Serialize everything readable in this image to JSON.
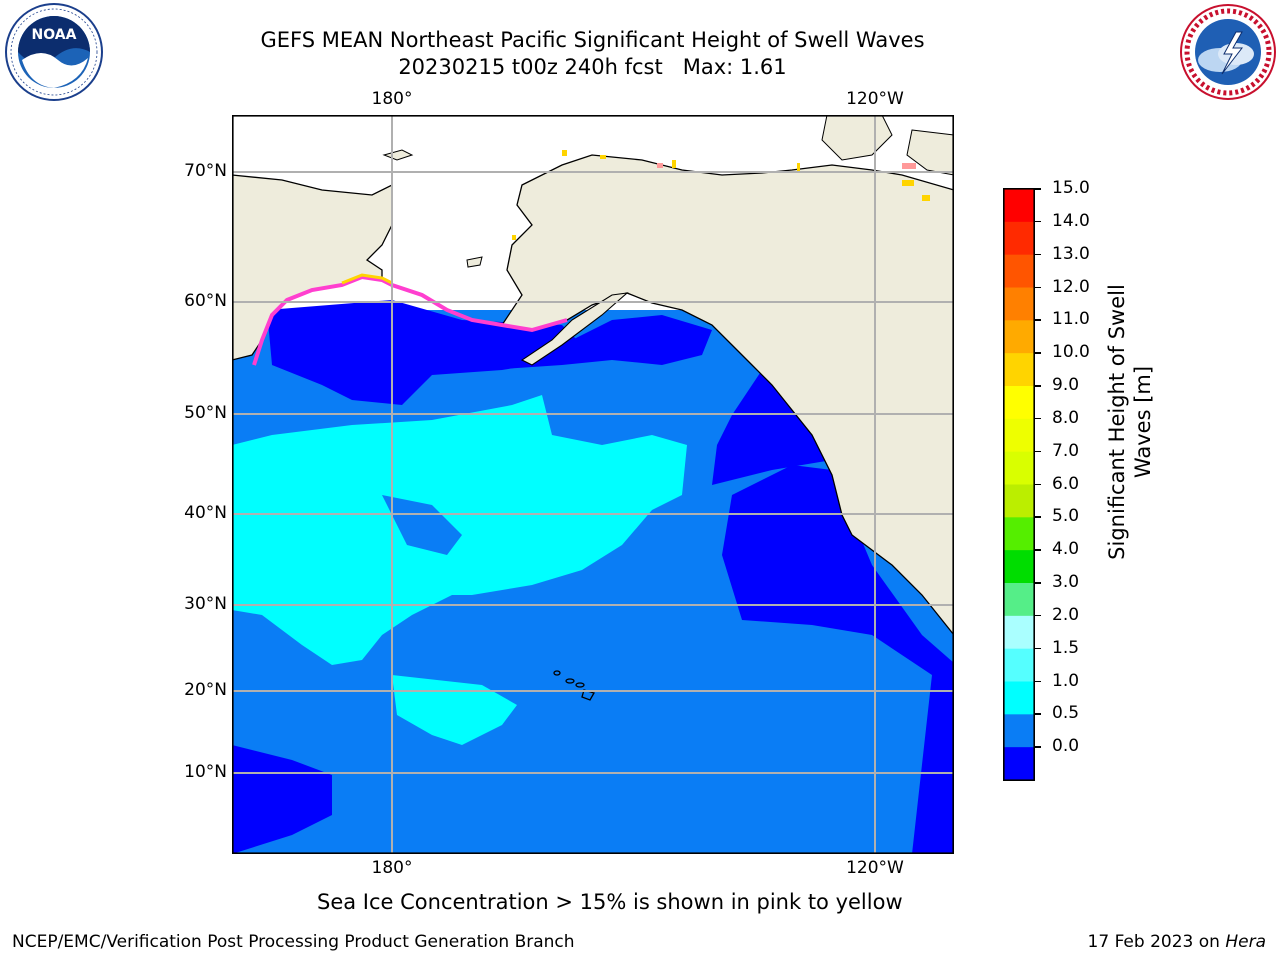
{
  "title": {
    "line1": "GEFS MEAN Northeast Pacific Significant Height of Swell Waves",
    "line2": "20230215 t00z 240h fcst   Max: 1.61"
  },
  "logos": {
    "noaa_text": "NOAA",
    "noaa_ring": "NATIONAL OCEANIC AND ATMOSPHERIC ADMINISTRATION · U.S. DEPARTMENT OF COMMERCE",
    "nws_ring": "NATIONAL WEATHER SERVICE"
  },
  "map": {
    "lat_labels": [
      "70°N",
      "60°N",
      "50°N",
      "40°N",
      "30°N",
      "20°N",
      "10°N"
    ],
    "lon_labels_top": [
      "180°",
      "120°W"
    ],
    "lon_labels_bottom": [
      "180°",
      "120°W"
    ],
    "colors": {
      "land": "#eeecdc",
      "ocean_0_05": "#0000ff",
      "ocean_05_1": "#0a7df5",
      "ocean_1_15": "#00ffff",
      "ice_pink": "#ff3fcf",
      "ice_yellow": "#ffd400",
      "grid": "#b0b0b0",
      "coast": "#000000"
    }
  },
  "colorbar": {
    "label_line1": "Significant Height of Swell",
    "label_line2": "Waves [m]",
    "ticks": [
      "15.0",
      "14.0",
      "13.0",
      "12.0",
      "11.0",
      "10.0",
      "9.0",
      "8.0",
      "7.0",
      "6.0",
      "5.0",
      "4.0",
      "3.0",
      "2.0",
      "1.5",
      "1.0",
      "0.5",
      "0.0"
    ],
    "segments_top_to_bottom": [
      "#ff0000",
      "#ff2a00",
      "#ff5500",
      "#ff8000",
      "#ffaa00",
      "#ffd400",
      "#ffff00",
      "#eeff00",
      "#d9ff00",
      "#bbee00",
      "#55ee00",
      "#00dd00",
      "#55ee88",
      "#aaffff",
      "#55ffff",
      "#00ffff",
      "#0a7df5",
      "#0000ff"
    ]
  },
  "note": "Sea Ice Concentration > 15% is shown in pink to yellow",
  "footer": {
    "left": "NCEP/EMC/Verification Post Processing Product Generation Branch",
    "right_date": "17 Feb 2023 on ",
    "right_host": "Hera"
  }
}
